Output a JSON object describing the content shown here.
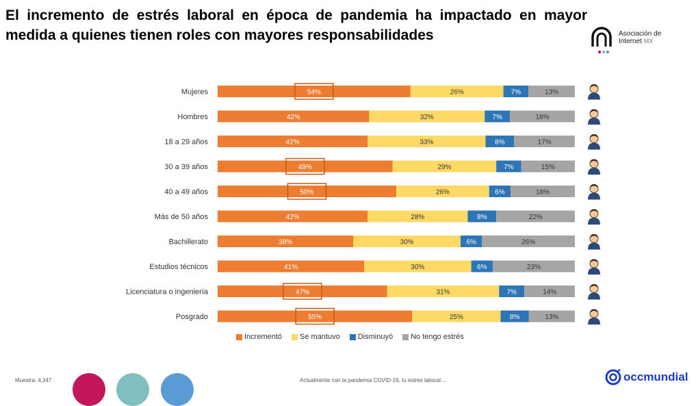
{
  "title": "El incremento de estrés laboral en época de pandemia ha impactado en mayor medida a quienes tienen roles con mayores responsabilidades",
  "logo": {
    "line1": "Asociación de",
    "line2": "Internet",
    "suffix": "MX"
  },
  "footer": {
    "sample": "Muestra: 4,347",
    "question": "Actualmente con la pandemia COVID-19, tu estrés laboral…",
    "brand": "occmundial"
  },
  "colors": {
    "incremento": "#ED7D31",
    "se_mantuvo": "#FFD966",
    "disminuyo": "#2E75B6",
    "no_estres": "#A5A5A5",
    "highlight": "#C55A11",
    "circle1": "#C2185B",
    "circle2": "#7FBFBF",
    "circle3": "#5B9BD5",
    "brand": "#1A3CC8"
  },
  "chart_data": {
    "type": "bar",
    "orientation": "horizontal",
    "stacked": "100%",
    "categories": [
      "Mujeres",
      "Hombres",
      "18 a 29 años",
      "30 a 39 años",
      "40 a 49 años",
      "Más de 50 años",
      "Bachillerato",
      "Estudios técnicos",
      "Licenciatura o ingeniería",
      "Posgrado"
    ],
    "series": [
      {
        "name": "Incrementó",
        "values": [
          54,
          42,
          42,
          49,
          50,
          42,
          38,
          41,
          47,
          55
        ]
      },
      {
        "name": "Se mantuvo",
        "values": [
          26,
          32,
          33,
          29,
          26,
          28,
          30,
          30,
          31,
          25
        ]
      },
      {
        "name": "Disminuyó",
        "values": [
          7,
          7,
          8,
          7,
          6,
          8,
          6,
          6,
          7,
          8
        ]
      },
      {
        "name": "No tengo estrés",
        "values": [
          13,
          18,
          17,
          15,
          18,
          22,
          26,
          23,
          14,
          13
        ]
      }
    ],
    "value_suffix": "%",
    "highlighted_categories": [
      "Mujeres",
      "30 a 39 años",
      "40 a 49 años",
      "Licenciatura o ingeniería",
      "Posgrado"
    ],
    "legend_position": "bottom",
    "grid": false
  }
}
